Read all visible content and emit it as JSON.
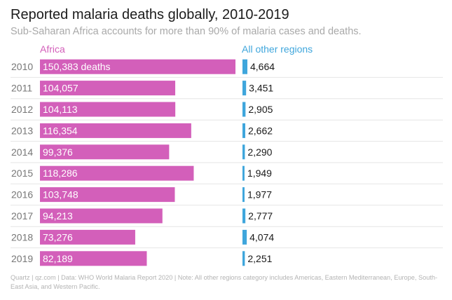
{
  "header": {
    "title": "Reported malaria deaths globally, 2010-2019",
    "subtitle": "Sub-Saharan Africa accounts for more than 90% of malaria cases and deaths."
  },
  "footer": {
    "note": "Quartz | qz.com | Data: WHO World Malaria Report 2020 | Note: All other regions category includes Americas, Eastern Mediterranean, Europe, South-East Asia, and Western Pacific."
  },
  "colors": {
    "africa": "#d35fba",
    "other": "#3fa6dc",
    "gridline": "#e6e6e6"
  },
  "chart_data": {
    "type": "bar",
    "title": "Reported malaria deaths globally, 2010-2019",
    "subtitle": "Sub-Saharan Africa accounts for more than 90% of malaria cases and deaths.",
    "orientation": "horizontal",
    "categories": [
      "2010",
      "2011",
      "2012",
      "2013",
      "2014",
      "2015",
      "2016",
      "2017",
      "2018",
      "2019"
    ],
    "series": [
      {
        "name": "Africa",
        "values": [
          150383,
          104057,
          104113,
          116354,
          99376,
          118286,
          103748,
          94213,
          73276,
          82189
        ],
        "labels": [
          "150,383 deaths",
          "104,057",
          "104,113",
          "116,354",
          "99,376",
          "118,286",
          "103,748",
          "94,213",
          "73,276",
          "82,189"
        ]
      },
      {
        "name": "All other regions",
        "values": [
          4664,
          3451,
          2905,
          2662,
          2290,
          1949,
          1977,
          2777,
          4074,
          2251
        ],
        "labels": [
          "4,664",
          "3,451",
          "2,905",
          "2,662",
          "2,290",
          "1,949",
          "1,977",
          "2,777",
          "4,074",
          "2,251"
        ]
      }
    ],
    "legend": [
      "Africa",
      "All other regions"
    ],
    "xlabel": "",
    "ylabel": ""
  }
}
